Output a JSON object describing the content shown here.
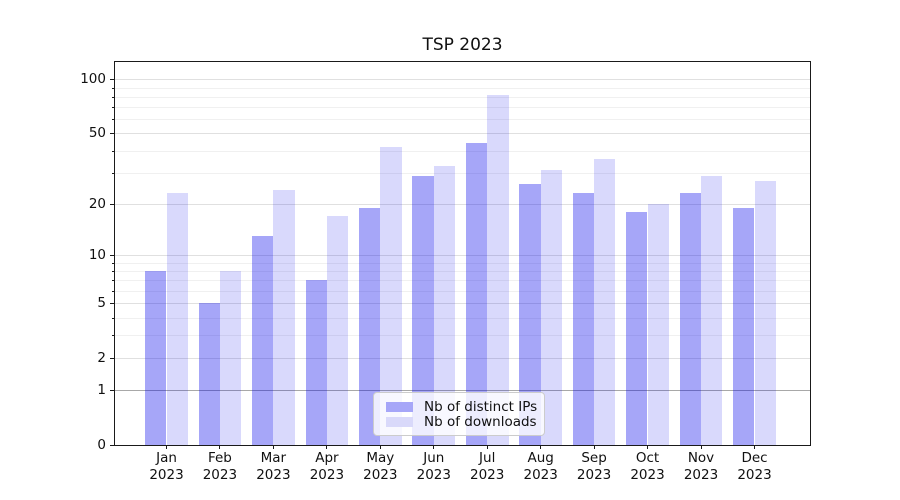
{
  "title": "TSP 2023",
  "chart_data": {
    "type": "bar",
    "title": "TSP 2023",
    "categories": [
      "Jan 2023",
      "Feb 2023",
      "Mar 2023",
      "Apr 2023",
      "May 2023",
      "Jun 2023",
      "Jul 2023",
      "Aug 2023",
      "Sep 2023",
      "Oct 2023",
      "Nov 2023",
      "Dec 2023"
    ],
    "series": [
      {
        "name": "Nb of distinct IPs",
        "color": "rgba(0,0,235,0.35)",
        "color_flat": "#a6a6f8",
        "values": [
          8,
          5,
          13,
          7,
          19,
          29,
          44,
          26,
          23,
          18,
          23,
          19
        ]
      },
      {
        "name": "Nb of downloads",
        "color": "rgba(0,0,235,0.15)",
        "color_flat": "#d9d9fa",
        "values": [
          23,
          8,
          24,
          17,
          42,
          33,
          82,
          31,
          36,
          20,
          29,
          27
        ]
      }
    ],
    "xlabel": "",
    "ylabel": "",
    "y_axis": {
      "scale": "log1p",
      "major_ticks": [
        0,
        1,
        2,
        5,
        10,
        20,
        50,
        100
      ],
      "minor_gridlines": [
        3,
        4,
        6,
        7,
        8,
        9,
        30,
        40,
        60,
        70,
        80,
        90
      ],
      "ylim": [
        0,
        125
      ]
    },
    "grid": true,
    "legend_position": "lower center"
  },
  "colors": {
    "grid_major": "#e0e0e0",
    "grid_minor": "#f0f0f0",
    "grid_unit_line": "#a8a8a8",
    "axis": "#1a1a1a",
    "background": "#ffffff"
  }
}
